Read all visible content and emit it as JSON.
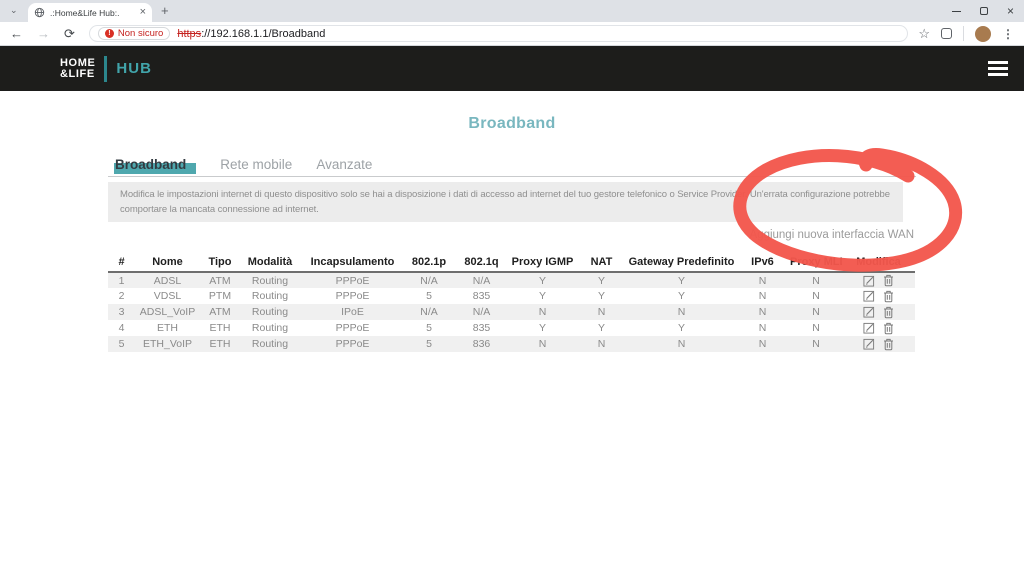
{
  "browser": {
    "tab_title": ".:Home&Life Hub:.",
    "tab_close": "×",
    "strip_chevron": "⌄",
    "new_tab": "+",
    "window_close": "×",
    "nav": {
      "back": "←",
      "forward": "→",
      "reload": "⟳"
    },
    "omnibox": {
      "security_icon": "!",
      "security_label": "Non sicuro",
      "scheme": "https",
      "url_rest": "://192.168.1.1/Broadband"
    },
    "bookmark_star": "☆",
    "menu_dots": "⋮"
  },
  "site_header": {
    "logo_top": "HOME",
    "logo_bottom": "&LIFE",
    "logo_suffix": "HUB"
  },
  "page": {
    "title": "Broadband",
    "tabs": [
      {
        "label": "Broadband",
        "active": true
      },
      {
        "label": "Rete mobile",
        "active": false
      },
      {
        "label": "Avanzate",
        "active": false
      }
    ],
    "notice_line1": "Modifica le impostazioni internet di questo dispositivo solo se hai a disposizione i dati di accesso ad internet del tuo gestore telefonico o Service Provider. Un'errata configurazione potrebbe",
    "notice_line2": "comportare la mancata connessione ad internet.",
    "add_wan_label": "Aggiungi nuova interfaccia WAN"
  },
  "table": {
    "columns": [
      "#",
      "Nome",
      "Tipo",
      "Modalità",
      "Incapsulamento",
      "802.1p",
      "802.1q",
      "Proxy IGMP",
      "NAT",
      "Gateway Predefinito",
      "IPv6",
      "Proxy MLD",
      "Modifica"
    ],
    "rows": [
      [
        "1",
        "ADSL",
        "ATM",
        "Routing",
        "PPPoE",
        "N/A",
        "N/A",
        "Y",
        "Y",
        "Y",
        "N",
        "N"
      ],
      [
        "2",
        "VDSL",
        "PTM",
        "Routing",
        "PPPoE",
        "5",
        "835",
        "Y",
        "Y",
        "Y",
        "N",
        "N"
      ],
      [
        "3",
        "ADSL_VoIP",
        "ATM",
        "Routing",
        "IPoE",
        "N/A",
        "N/A",
        "N",
        "N",
        "N",
        "N",
        "N"
      ],
      [
        "4",
        "ETH",
        "ETH",
        "Routing",
        "PPPoE",
        "5",
        "835",
        "Y",
        "Y",
        "Y",
        "N",
        "N"
      ],
      [
        "5",
        "ETH_VoIP",
        "ETH",
        "Routing",
        "PPPoE",
        "5",
        "836",
        "N",
        "N",
        "N",
        "N",
        "N"
      ]
    ]
  },
  "colors": {
    "accent_teal": "#4fa8ae",
    "title_teal": "#79b7bf",
    "header_dark": "#1d1d1b",
    "marker_red": "#f2564c",
    "insecure_red": "#c5221f",
    "stripe_gray": "#f0f0f0"
  }
}
